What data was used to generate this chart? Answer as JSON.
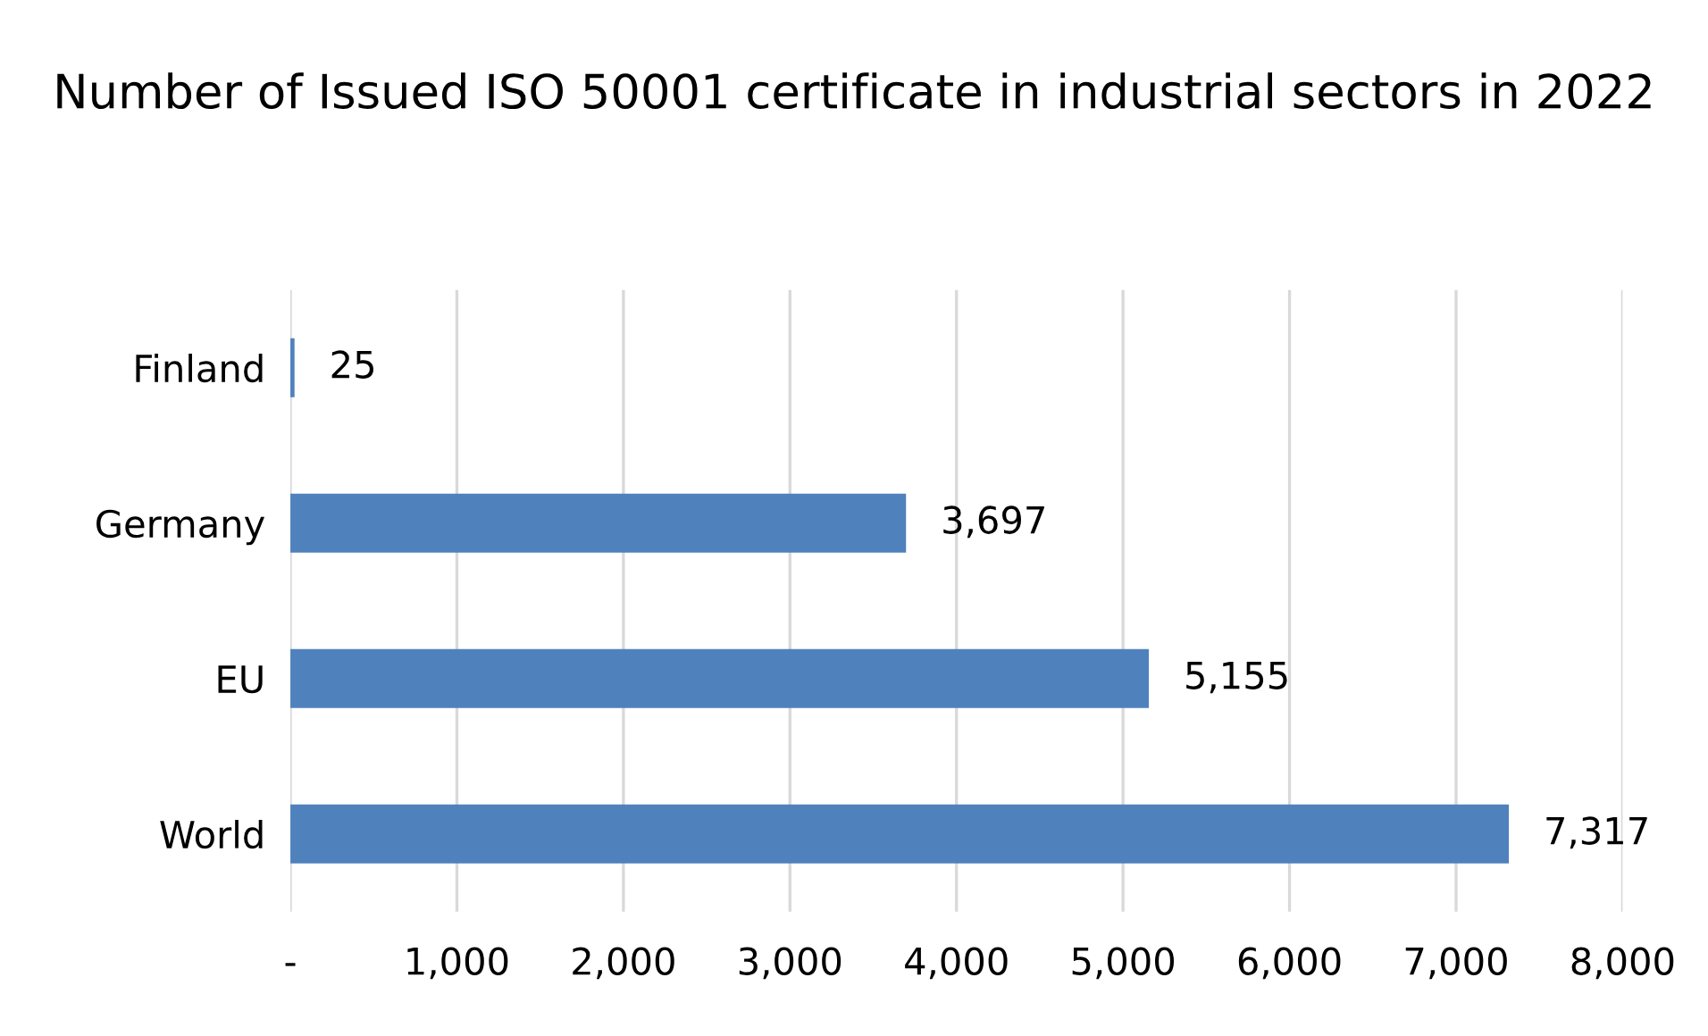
{
  "chart_data": {
    "type": "bar",
    "orientation": "horizontal",
    "title": "Number of Issued ISO 50001 certificate in industrial sectors in 2022",
    "categories": [
      "Finland",
      "Germany",
      "EU",
      "World"
    ],
    "values": [
      25,
      3697,
      5155,
      7317
    ],
    "value_labels": [
      "25",
      "3,697",
      "5,155",
      "7,317"
    ],
    "color": "#4f81bd",
    "xlim": [
      0,
      8000
    ],
    "xticks": [
      {
        "value": 0,
        "label": "-"
      },
      {
        "value": 1000,
        "label": "1,000"
      },
      {
        "value": 2000,
        "label": "2,000"
      },
      {
        "value": 3000,
        "label": "3,000"
      },
      {
        "value": 4000,
        "label": "4,000"
      },
      {
        "value": 5000,
        "label": "5,000"
      },
      {
        "value": 6000,
        "label": "6,000"
      },
      {
        "value": 7000,
        "label": "7,000"
      },
      {
        "value": 8000,
        "label": "8,000"
      }
    ],
    "grid": "x"
  }
}
